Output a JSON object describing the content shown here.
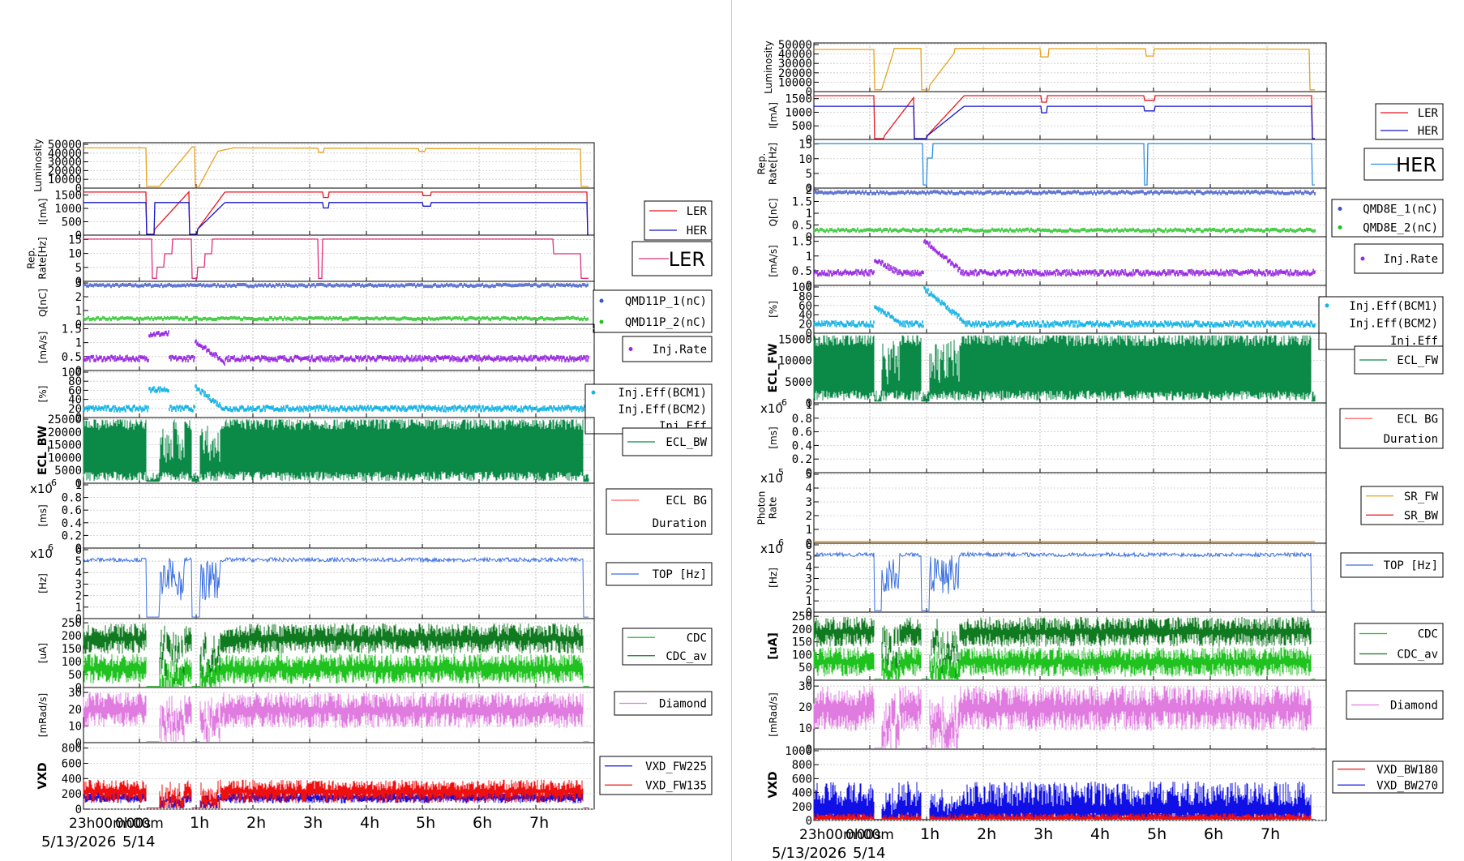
{
  "chart_data": [
    {
      "type": "line",
      "time_ticks": [
        "23h00m00s",
        "0h00m",
        "1h",
        "2h",
        "3h",
        "4h",
        "5h",
        "6h",
        "7h"
      ],
      "date_labels": [
        "5/13/2026",
        "5/14"
      ],
      "panels": [
        {
          "id": "lum",
          "ylabel": "Luminosity",
          "yticks": [
            "0",
            "10000",
            "20000",
            "30000",
            "40000",
            "50000"
          ],
          "ylim": [
            0,
            50000
          ],
          "series": [
            {
              "name": "",
              "color": "#e6a21e"
            }
          ]
        },
        {
          "id": "cur",
          "ylabel": "I[mA]",
          "yticks": [
            "0",
            "500",
            "1000",
            "1500"
          ],
          "ylim": [
            0,
            1700
          ],
          "legend": [
            "LER",
            "HER"
          ],
          "series": [
            {
              "name": "LER",
              "color": "#e8141e"
            },
            {
              "name": "HER",
              "color": "#1414c8"
            }
          ]
        },
        {
          "id": "rep",
          "ylabel": "Rep. Rate[Hz]",
          "yticks": [
            "0",
            "5",
            "10",
            "15"
          ],
          "ylim": [
            0,
            16
          ],
          "legend_big": "LER",
          "series": [
            {
              "name": "LER",
              "color": "#e0307a"
            }
          ]
        },
        {
          "id": "q",
          "ylabel": "Q[nC]",
          "yticks": [
            "0",
            "1",
            "2",
            "3"
          ],
          "ylim": [
            0,
            3
          ],
          "legend": [
            "QMD11P_1(nC)",
            "QMD11P_2(nC)"
          ],
          "series": [
            {
              "name": "QMD11P_1(nC)",
              "color": "#3a57c9"
            },
            {
              "name": "QMD11P_2(nC)",
              "color": "#1fc21f"
            }
          ]
        },
        {
          "id": "inj",
          "ylabel": "[mA/s]",
          "yticks": [
            "0",
            "0.5",
            "1",
            "1.5"
          ],
          "ylim": [
            0,
            1.6
          ],
          "legend": [
            "Inj.Rate"
          ],
          "series": [
            {
              "name": "Inj.Rate",
              "color": "#9a2be2"
            }
          ]
        },
        {
          "id": "eff",
          "ylabel": "[%]",
          "yticks": [
            "0",
            "20",
            "40",
            "60",
            "80",
            "100"
          ],
          "ylim": [
            0,
            100
          ],
          "legend": [
            "Inj.Eff(BCM1)",
            "Inj.Eff(BCM2)",
            "Inj.Eff"
          ],
          "series": [
            {
              "name": "Inj.Eff",
              "color": "#17b4e6"
            }
          ]
        },
        {
          "id": "ecl",
          "ylabel": "ECL_BW",
          "yticks": [
            "0",
            "5000",
            "10000",
            "15000",
            "20000",
            "25000"
          ],
          "ylim": [
            0,
            25000
          ],
          "legend": [
            "ECL_BW"
          ],
          "series": [
            {
              "name": "ECL_BW",
              "color": "#0a8a46"
            }
          ]
        },
        {
          "id": "eclbg",
          "ylabel": "[ms]",
          "yticks": [
            "0",
            "0.2",
            "0.4",
            "0.6",
            "0.8",
            "1"
          ],
          "ylim": [
            0,
            1
          ],
          "multiplier": "x10",
          "mult_exp": "-6",
          "legend": [
            "ECL BG",
            "Duration"
          ],
          "series": [
            {
              "name": "ECL BG Duration",
              "color": "#ff6060"
            }
          ]
        },
        {
          "id": "top",
          "ylabel": "[Hz]",
          "yticks": [
            "0",
            "1",
            "2",
            "3",
            "4",
            "5",
            "6"
          ],
          "ylim": [
            0,
            6
          ],
          "multiplier": "x10",
          "mult_exp": "6",
          "legend": [
            "TOP [Hz]"
          ],
          "series": [
            {
              "name": "TOP [Hz]",
              "color": "#3a6fe0"
            }
          ]
        },
        {
          "id": "cdc",
          "ylabel": "[uA]",
          "yticks": [
            "0",
            "50",
            "100",
            "150",
            "200",
            "250"
          ],
          "ylim": [
            0,
            260
          ],
          "legend": [
            "CDC",
            "CDC_av"
          ],
          "series": [
            {
              "name": "CDC",
              "color": "#1fc21f"
            },
            {
              "name": "CDC_av",
              "color": "#0f7a1f"
            }
          ]
        },
        {
          "id": "dia",
          "ylabel": "[mRad/s]",
          "yticks": [
            "0",
            "10",
            "20",
            "30"
          ],
          "ylim": [
            0,
            32
          ],
          "legend": [
            "Diamond"
          ],
          "series": [
            {
              "name": "Diamond",
              "color": "#e07ce0"
            }
          ]
        },
        {
          "id": "vxd",
          "ylabel": "VXD",
          "yticks": [
            "0",
            "200",
            "400",
            "600",
            "800"
          ],
          "ylim": [
            0,
            850
          ],
          "legend": [
            "VXD_FW225",
            "VXD_FW135"
          ],
          "series": [
            {
              "name": "VXD_FW225",
              "color": "#1010e6"
            },
            {
              "name": "VXD_FW135",
              "color": "#ee1010"
            }
          ]
        }
      ]
    },
    {
      "type": "line",
      "time_ticks": [
        "23h00m00s",
        "0h00m",
        "1h",
        "2h",
        "3h",
        "4h",
        "5h",
        "6h",
        "7h"
      ],
      "date_labels": [
        "5/13/2026",
        "5/14"
      ],
      "panels": [
        {
          "id": "lum",
          "ylabel": "Luminosity",
          "yticks": [
            "0",
            "10000",
            "20000",
            "30000",
            "40000",
            "50000"
          ],
          "ylim": [
            0,
            50000
          ],
          "series": [
            {
              "name": "",
              "color": "#e6a21e"
            }
          ]
        },
        {
          "id": "cur",
          "ylabel": "I[mA]",
          "yticks": [
            "0",
            "500",
            "1000",
            "1500"
          ],
          "ylim": [
            0,
            1700
          ],
          "legend": [
            "LER",
            "HER"
          ],
          "series": [
            {
              "name": "LER",
              "color": "#e8141e"
            },
            {
              "name": "HER",
              "color": "#1414c8"
            }
          ]
        },
        {
          "id": "rep",
          "ylabel": "Rep. Rate[Hz]",
          "yticks": [
            "0",
            "5",
            "10",
            "15"
          ],
          "ylim": [
            0,
            16
          ],
          "legend_big": "HER",
          "series": [
            {
              "name": "HER",
              "color": "#2a8ee0"
            }
          ]
        },
        {
          "id": "q",
          "ylabel": "Q[nC]",
          "yticks": [
            "0",
            "0.5",
            "1",
            "1.5",
            "2"
          ],
          "ylim": [
            0,
            2
          ],
          "legend": [
            "QMD8E_1(nC)",
            "QMD8E_2(nC)"
          ],
          "series": [
            {
              "name": "QMD8E_1(nC)",
              "color": "#3a57c9"
            },
            {
              "name": "QMD8E_2(nC)",
              "color": "#1fc21f"
            }
          ]
        },
        {
          "id": "inj",
          "ylabel": "[mA/s]",
          "yticks": [
            "0",
            "0.5",
            "1",
            "1.5"
          ],
          "ylim": [
            0,
            1.6
          ],
          "legend": [
            "Inj.Rate"
          ],
          "series": [
            {
              "name": "Inj.Rate",
              "color": "#9a2be2"
            }
          ]
        },
        {
          "id": "eff",
          "ylabel": "[%]",
          "yticks": [
            "0",
            "20",
            "40",
            "60",
            "80",
            "100"
          ],
          "ylim": [
            0,
            100
          ],
          "legend": [
            "Inj.Eff(BCM1)",
            "Inj.Eff(BCM2)",
            "Inj.Eff"
          ],
          "series": [
            {
              "name": "Inj.Eff",
              "color": "#17b4e6"
            }
          ]
        },
        {
          "id": "ecl",
          "ylabel": "ECL_FW",
          "yticks": [
            "0",
            "5000",
            "10000",
            "15000"
          ],
          "ylim": [
            0,
            16000
          ],
          "legend": [
            "ECL_FW"
          ],
          "series": [
            {
              "name": "ECL_FW",
              "color": "#0a8a46"
            }
          ]
        },
        {
          "id": "eclbg",
          "ylabel": "[ms]",
          "yticks": [
            "0",
            "0.2",
            "0.4",
            "0.6",
            "0.8",
            "1"
          ],
          "ylim": [
            0,
            1
          ],
          "multiplier": "x10",
          "mult_exp": "-6",
          "legend": [
            "ECL BG",
            "Duration"
          ],
          "series": [
            {
              "name": "ECL BG Duration",
              "color": "#ff6060"
            }
          ]
        },
        {
          "id": "sr",
          "ylabel": "Photon Rate",
          "yticks": [
            "0",
            "1",
            "2",
            "3",
            "4",
            "5"
          ],
          "ylim": [
            0,
            5
          ],
          "multiplier": "x10",
          "mult_exp": "5",
          "legend": [
            "SR_FW",
            "SR_BW"
          ],
          "series": [
            {
              "name": "SR_FW",
              "color": "#e6a21e"
            },
            {
              "name": "SR_BW",
              "color": "#ee1010"
            }
          ]
        },
        {
          "id": "top",
          "ylabel": "[Hz]",
          "yticks": [
            "0",
            "1",
            "2",
            "3",
            "4",
            "5",
            "6"
          ],
          "ylim": [
            0,
            6
          ],
          "multiplier": "x10",
          "mult_exp": "6",
          "legend": [
            "TOP [Hz]"
          ],
          "series": [
            {
              "name": "TOP [Hz]",
              "color": "#3a6fe0"
            }
          ]
        },
        {
          "id": "cdc",
          "ylabel": "[uA]",
          "yticks": [
            "0",
            "50",
            "100",
            "150",
            "200",
            "250"
          ],
          "ylim": [
            0,
            260
          ],
          "legend": [
            "CDC",
            "CDC_av"
          ],
          "series": [
            {
              "name": "CDC",
              "color": "#1fc21f"
            },
            {
              "name": "CDC_av",
              "color": "#0f7a1f"
            }
          ]
        },
        {
          "id": "dia",
          "ylabel": "[mRad/s]",
          "yticks": [
            "0",
            "10",
            "20",
            "30"
          ],
          "ylim": [
            0,
            32
          ],
          "legend": [
            "Diamond"
          ],
          "series": [
            {
              "name": "Diamond",
              "color": "#e07ce0"
            }
          ]
        },
        {
          "id": "vxd",
          "ylabel": "VXD",
          "yticks": [
            "0",
            "200",
            "400",
            "600",
            "800",
            "1000"
          ],
          "ylim": [
            0,
            1000
          ],
          "legend": [
            "VXD_BW180",
            "VXD_BW270"
          ],
          "series": [
            {
              "name": "VXD_BW180",
              "color": "#ee1010"
            },
            {
              "name": "VXD_BW270",
              "color": "#1010e6"
            }
          ]
        }
      ]
    }
  ]
}
